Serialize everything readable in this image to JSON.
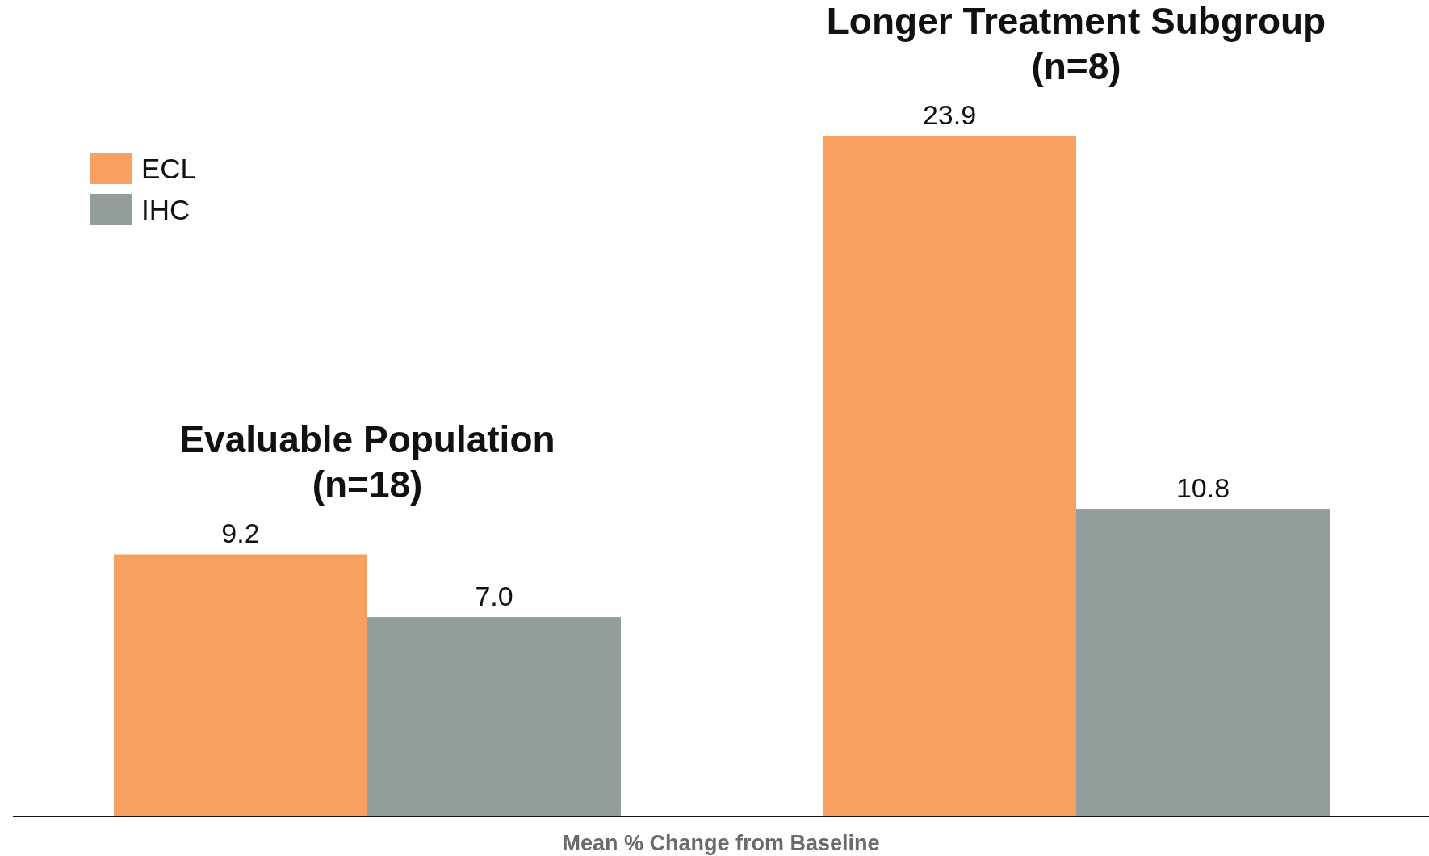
{
  "chart_data": {
    "type": "bar",
    "xlabel": "Mean % Change from Baseline",
    "categories": [
      "Evaluable Population\n(n=18)",
      "Longer Treatment Subgroup\n(n=8)"
    ],
    "series": [
      {
        "name": "ECL",
        "color": "#f8a060",
        "values": [
          9.2,
          23.9
        ],
        "value_labels": [
          "9.2",
          "23.9"
        ]
      },
      {
        "name": "IHC",
        "color": "#929e9c",
        "values": [
          7.0,
          10.8
        ],
        "value_labels": [
          "7.0",
          "10.8"
        ]
      }
    ],
    "legend": "top left"
  }
}
